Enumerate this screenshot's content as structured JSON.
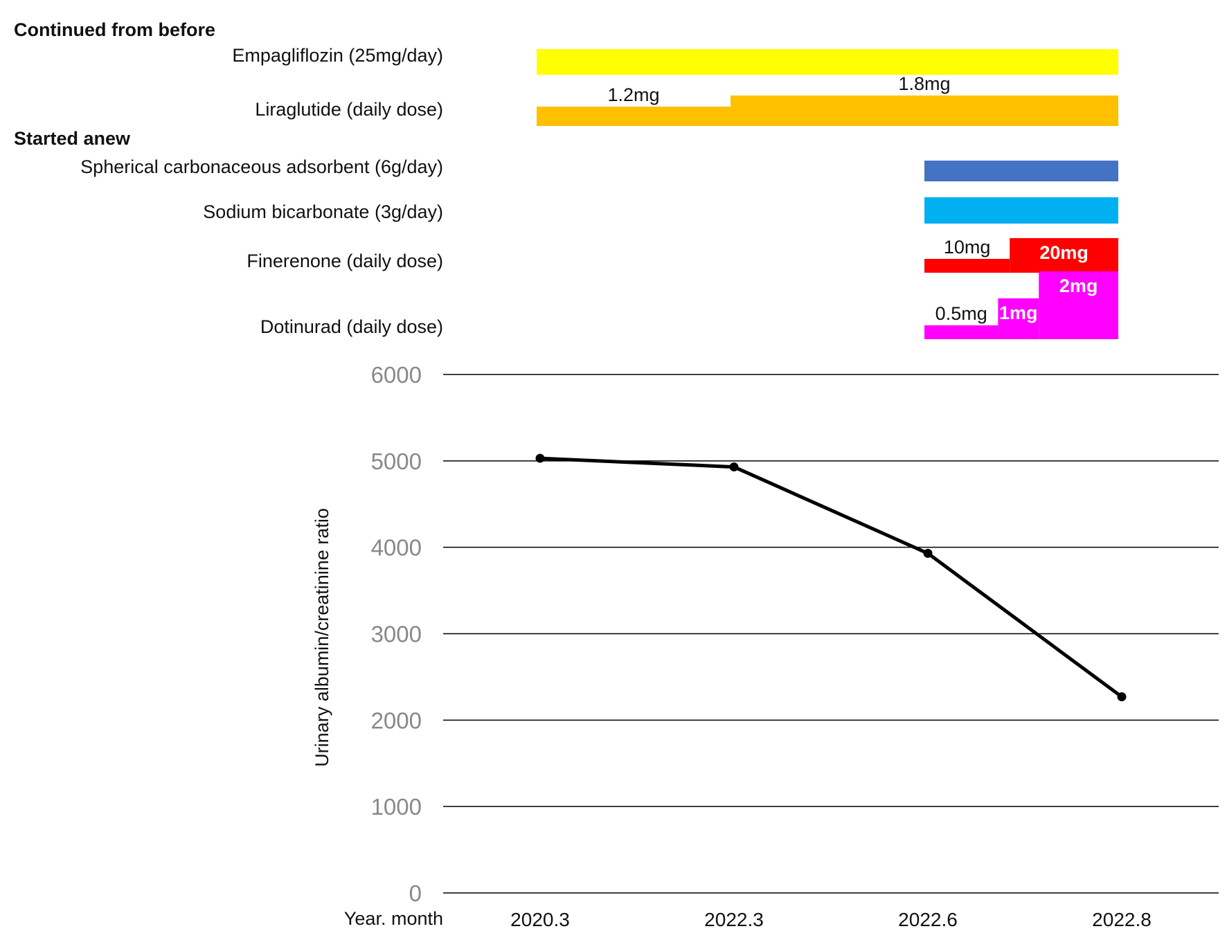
{
  "chart_data": [
    {
      "type": "timeline",
      "sections": [
        {
          "heading": "Continued from before",
          "rows": [
            {
              "label": "Empagliflozin (25mg/day)",
              "color": "#FFFF00",
              "segments": [
                {
                  "start": 0,
                  "end": 3,
                  "level": 1,
                  "dose_label": ""
                }
              ]
            },
            {
              "label": "Liraglutide (daily dose)",
              "color": "#FFC000",
              "segments": [
                {
                  "start": 0,
                  "end": 1,
                  "level": 1,
                  "dose_label": "1.2mg"
                },
                {
                  "start": 1,
                  "end": 3,
                  "level": 2,
                  "dose_label": "1.8mg"
                }
              ]
            }
          ]
        },
        {
          "heading": "Started anew",
          "rows": [
            {
              "label": "Spherical carbonaceous adsorbent (6g/day)",
              "color": "#4472C4",
              "segments": [
                {
                  "start": 2,
                  "end": 3,
                  "level": 1,
                  "dose_label": ""
                }
              ]
            },
            {
              "label": "Sodium bicarbonate (3g/day)",
              "color": "#00B0F0",
              "segments": [
                {
                  "start": 2,
                  "end": 3,
                  "level": 1,
                  "dose_label": ""
                }
              ]
            },
            {
              "label": "Finerenone (daily dose)",
              "color": "#FF0000",
              "segments": [
                {
                  "start": 2,
                  "end": 2.44,
                  "level": 1,
                  "dose_label": "10mg"
                },
                {
                  "start": 2.44,
                  "end": 3,
                  "level": 2,
                  "dose_label": "20mg"
                }
              ]
            },
            {
              "label": "Dotinurad (daily dose)",
              "color": "#FF00FF",
              "segments": [
                {
                  "start": 2,
                  "end": 2.38,
                  "level": 1,
                  "dose_label": "0.5mg"
                },
                {
                  "start": 2.38,
                  "end": 2.59,
                  "level": 2,
                  "dose_label": "1mg"
                },
                {
                  "start": 2.59,
                  "end": 3,
                  "level": 3,
                  "dose_label": "2mg"
                }
              ]
            }
          ]
        }
      ]
    },
    {
      "type": "line",
      "categories": [
        "2020.3",
        "2022.3",
        "2022.6",
        "2022.8"
      ],
      "series": [
        {
          "values": [
            5030,
            4930,
            3930,
            2270
          ],
          "color": "#000000"
        }
      ],
      "xlabel": "Year. month",
      "ylabel": "Urinary albumin/creatinine ratio",
      "ylim": [
        0,
        6000
      ],
      "yticks": [
        0,
        1000,
        2000,
        3000,
        4000,
        5000,
        6000
      ],
      "grid": true,
      "legend": "none"
    }
  ]
}
